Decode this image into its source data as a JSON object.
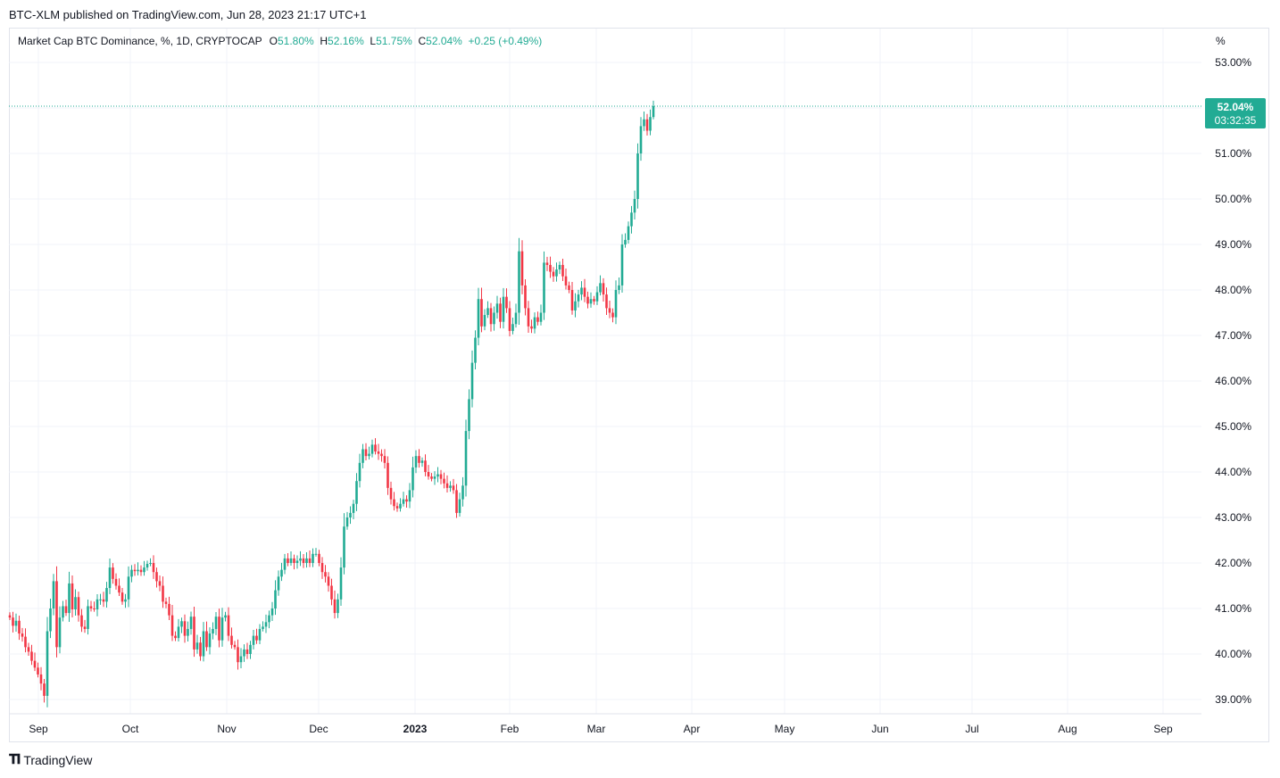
{
  "header": {
    "published": "BTC-XLM published on TradingView.com, Jun 28, 2023 21:17 UTC+1"
  },
  "legend": {
    "title": "Market Cap BTC Dominance, %, 1D, CRYPTOCAP",
    "o_label": "O",
    "o_value": "51.80%",
    "h_label": "H",
    "h_value": "52.16%",
    "l_label": "L",
    "l_value": "51.75%",
    "c_label": "C",
    "c_value": "52.04%",
    "change": "+0.25 (+0.49%)"
  },
  "price_axis": {
    "unit": "%",
    "ticks": [
      "53.00%",
      "52.00%",
      "51.00%",
      "50.00%",
      "49.00%",
      "48.00%",
      "47.00%",
      "46.00%",
      "45.00%",
      "44.00%",
      "43.00%",
      "42.00%",
      "41.00%",
      "40.00%",
      "39.00%"
    ],
    "last_price": "52.04%",
    "countdown": "03:32:35"
  },
  "time_axis": {
    "labels": [
      "Sep",
      "Oct",
      "Nov",
      "Dec",
      "2023",
      "Feb",
      "Mar",
      "Apr",
      "May",
      "Jun",
      "Jul",
      "Aug",
      "Sep"
    ]
  },
  "colors": {
    "up": "#22ab94",
    "down": "#f23645",
    "grid": "#f0f3fa",
    "axis_text": "#131722"
  },
  "footer": {
    "brand": "TradingView",
    "logo_icon": "tradingview-logo-icon"
  },
  "chart_data": {
    "type": "candlestick",
    "title": "Market Cap BTC Dominance, %, 1D, CRYPTOCAP",
    "ylabel": "%",
    "ylim": [
      38.85,
      53.45
    ],
    "grid": true,
    "x_axis": "daily, 2022-08-26 to 2023-06-28",
    "last_candle": {
      "date": "2023-06-28",
      "open": 51.8,
      "high": 52.16,
      "low": 51.75,
      "close": 52.04
    },
    "closes": [
      40.8,
      40.62,
      40.73,
      40.45,
      40.38,
      40.15,
      40.05,
      39.85,
      39.7,
      39.55,
      39.35,
      39.08,
      40.5,
      41.0,
      41.6,
      40.15,
      40.8,
      41.05,
      40.9,
      41.55,
      40.98,
      41.25,
      40.85,
      40.6,
      40.55,
      41.05,
      41.0,
      40.98,
      41.2,
      41.2,
      41.15,
      41.45,
      41.9,
      41.65,
      41.5,
      41.35,
      41.15,
      41.2,
      41.7,
      41.85,
      41.82,
      41.85,
      41.8,
      41.9,
      41.98,
      42.0,
      41.8,
      41.6,
      41.5,
      41.15,
      41.1,
      40.85,
      40.4,
      40.35,
      40.6,
      40.72,
      40.4,
      40.55,
      40.82,
      40.1,
      40.25,
      39.95,
      40.5,
      40.15,
      40.45,
      40.55,
      40.82,
      40.3,
      40.8,
      40.85,
      40.4,
      40.2,
      40.15,
      39.82,
      39.95,
      40.1,
      40.0,
      40.2,
      40.4,
      40.3,
      40.55,
      40.6,
      40.7,
      40.85,
      41.0,
      41.4,
      41.7,
      41.85,
      42.1,
      42.0,
      42.1,
      42.0,
      42.05,
      42.1,
      42.0,
      42.1,
      42.0,
      42.2,
      42.2,
      42.0,
      41.8,
      41.7,
      41.5,
      41.2,
      40.9,
      41.2,
      41.9,
      42.8,
      43.0,
      43.1,
      43.3,
      43.8,
      44.2,
      44.5,
      44.35,
      44.4,
      44.6,
      44.45,
      44.4,
      44.35,
      44.2,
      43.65,
      43.4,
      43.25,
      43.2,
      43.3,
      43.4,
      43.35,
      43.6,
      44.1,
      44.35,
      44.2,
      44.25,
      44.0,
      43.9,
      43.85,
      43.9,
      43.95,
      43.85,
      43.75,
      43.65,
      43.7,
      43.6,
      43.1,
      43.4,
      43.7,
      44.9,
      45.6,
      46.4,
      46.95,
      47.8,
      47.2,
      47.45,
      47.6,
      47.25,
      47.5,
      47.7,
      47.3,
      47.85,
      47.6,
      47.1,
      47.25,
      47.5,
      48.85,
      48.1,
      47.6,
      47.2,
      47.15,
      47.4,
      47.3,
      47.5,
      48.6,
      48.55,
      48.4,
      48.3,
      48.45,
      48.55,
      48.3,
      48.1,
      48.0,
      47.55,
      47.75,
      47.9,
      48.05,
      47.85,
      47.7,
      47.8,
      47.75,
      47.95,
      48.15,
      47.9,
      47.6,
      47.5,
      47.4,
      48.0,
      48.1,
      49.0,
      49.1,
      49.4,
      49.7,
      50.0,
      51.0,
      51.6,
      51.75,
      51.5,
      51.8,
      52.04
    ]
  }
}
